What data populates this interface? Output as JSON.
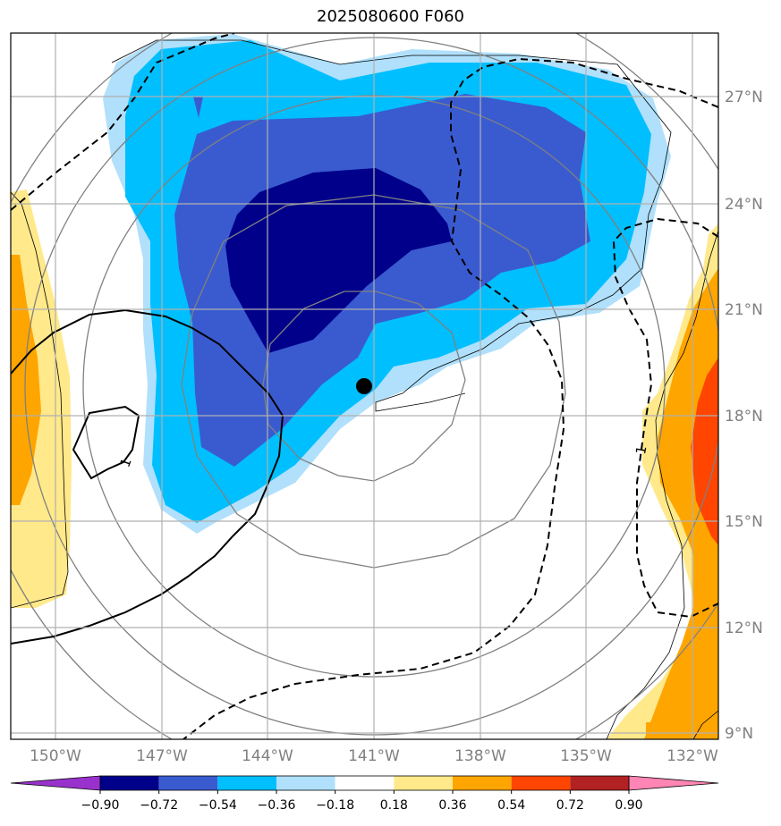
{
  "title": "2025080600 F060",
  "lon_labels": [
    "150°W",
    "147°W",
    "144°W",
    "141°W",
    "138°W",
    "135°W",
    "132°W"
  ],
  "lat_labels": [
    "27°N",
    "24°N",
    "21°N",
    "18°N",
    "15°N",
    "12°N",
    "9°N"
  ],
  "colorbar": {
    "tick_labels": [
      "−0.90",
      "−0.72",
      "−0.54",
      "−0.36",
      "−0.18",
      "0.18",
      "0.36",
      "0.54",
      "0.72",
      "0.90"
    ],
    "colors": [
      "#9932cc",
      "#00008b",
      "#3a5bd0",
      "#00bfff",
      "#b0e0fb",
      "#ffffff",
      "#ffe98a",
      "#ffa500",
      "#ff4500",
      "#b22222",
      "#ff85b4"
    ]
  },
  "contour_labels": [
    "1",
    "1"
  ],
  "storm_center": {
    "lon": -141.3,
    "lat": 18.8
  },
  "fill_colors": {
    "deep_negative": "#00008b",
    "negative": "#3a5bd0",
    "mid_negative": "#00bfff",
    "light_negative": "#b0e0fb",
    "light_positive": "#ffe98a",
    "positive": "#ffa500",
    "strong_positive": "#ff4500"
  }
}
